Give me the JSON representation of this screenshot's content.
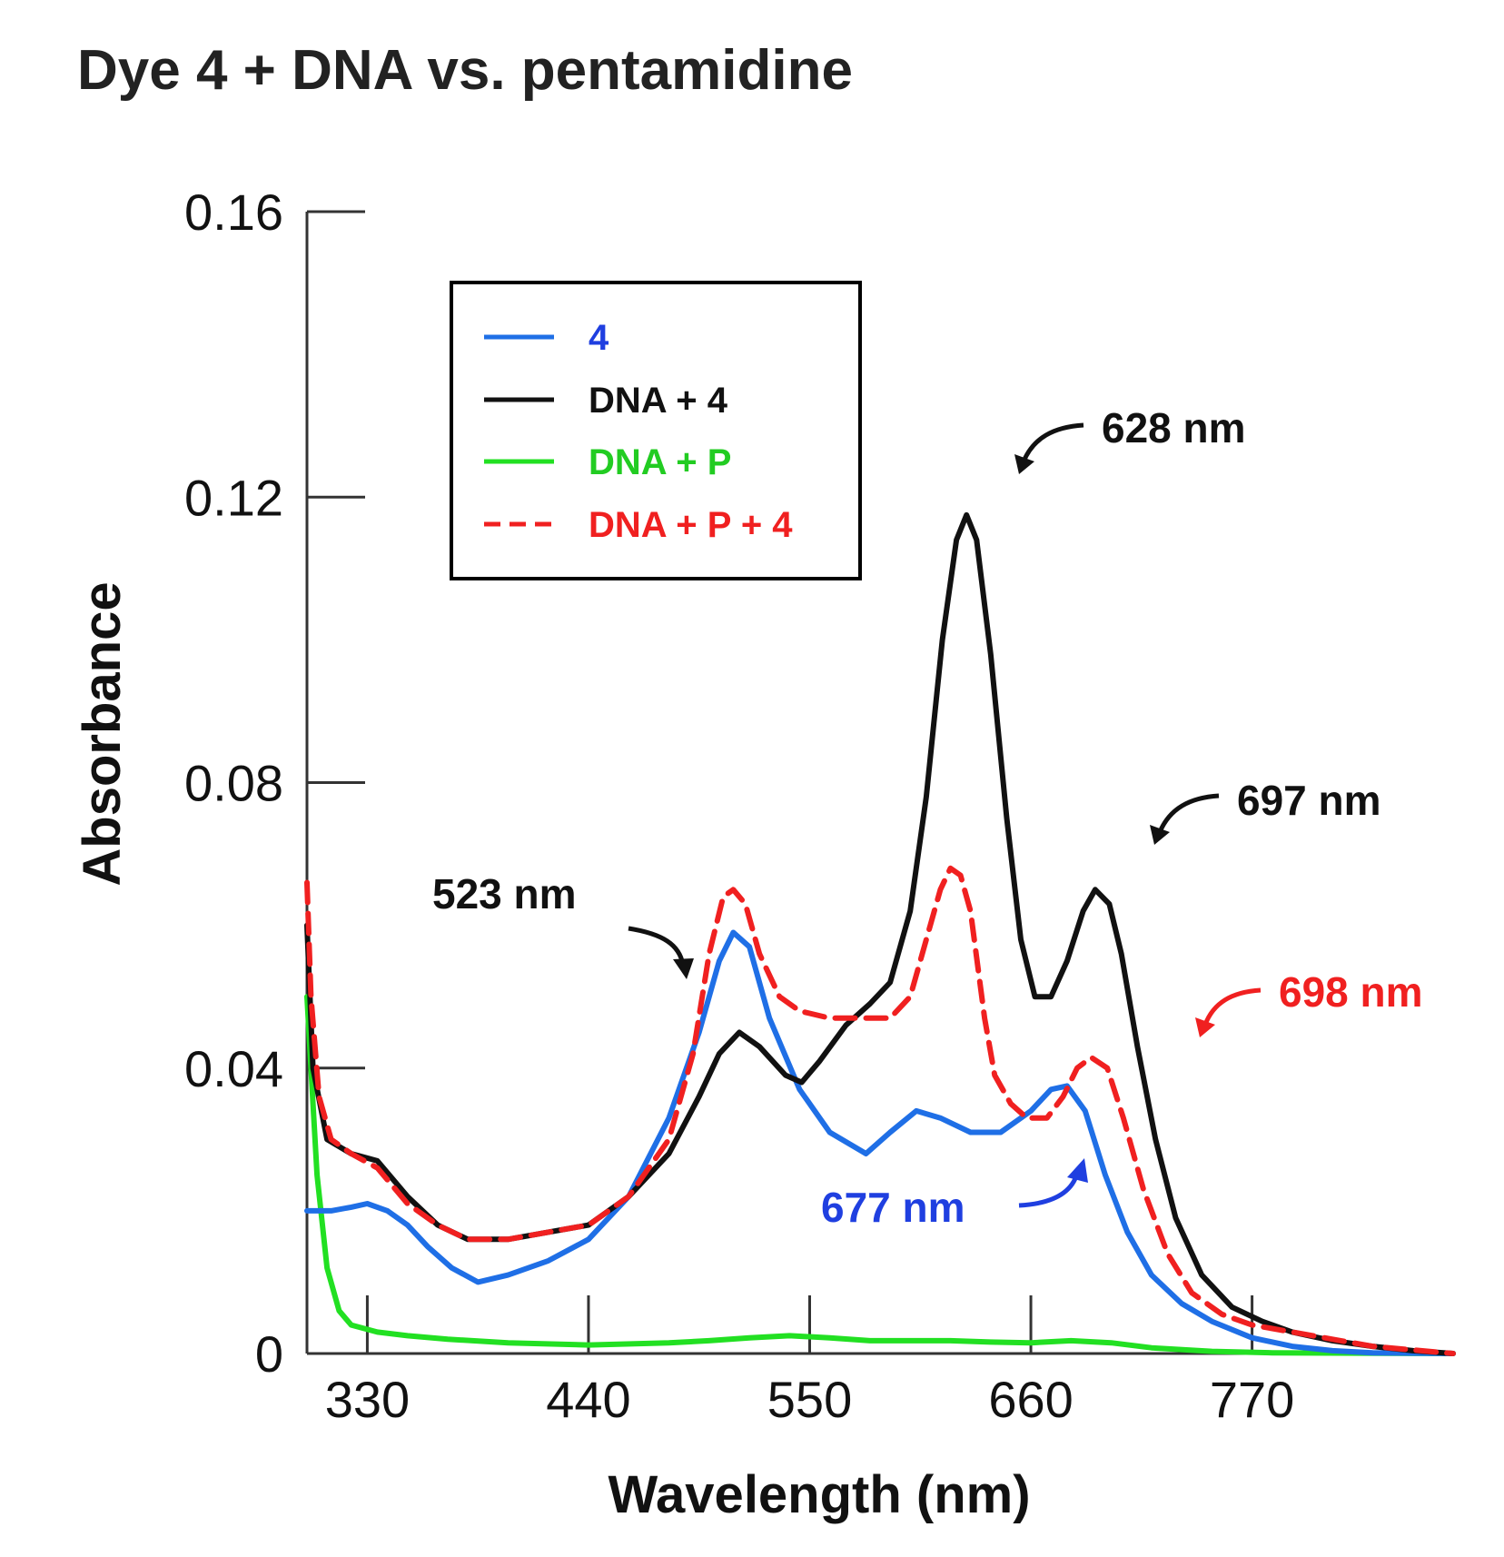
{
  "chart_data": {
    "type": "line",
    "title": "Dye 4 + DNA vs. pentamidine",
    "xlabel": "Wavelength (nm)",
    "ylabel": "Absorbance",
    "xlim": [
      300,
      870
    ],
    "ylim": [
      0,
      0.16
    ],
    "xticks": [
      330,
      440,
      550,
      660,
      770
    ],
    "xtick_labels": [
      "330",
      "440",
      "550",
      "660",
      "770"
    ],
    "yticks": [
      0,
      0.04,
      0.08,
      0.12,
      0.16
    ],
    "ytick_labels": [
      "0",
      "0.04",
      "0.08",
      "0.12",
      "0.16"
    ],
    "grid": false,
    "legend_position": "upper-left inside plot",
    "series": [
      {
        "name": "4",
        "color": "#1f6fe6",
        "dash": "solid",
        "points": [
          [
            300,
            0.02
          ],
          [
            312,
            0.02
          ],
          [
            322,
            0.0205
          ],
          [
            330,
            0.021
          ],
          [
            340,
            0.02
          ],
          [
            350,
            0.018
          ],
          [
            360,
            0.015
          ],
          [
            372,
            0.012
          ],
          [
            385,
            0.01
          ],
          [
            400,
            0.011
          ],
          [
            420,
            0.013
          ],
          [
            440,
            0.016
          ],
          [
            460,
            0.022
          ],
          [
            480,
            0.033
          ],
          [
            495,
            0.045
          ],
          [
            505,
            0.055
          ],
          [
            512,
            0.059
          ],
          [
            520,
            0.057
          ],
          [
            530,
            0.047
          ],
          [
            545,
            0.037
          ],
          [
            560,
            0.031
          ],
          [
            578,
            0.028
          ],
          [
            590,
            0.031
          ],
          [
            603,
            0.034
          ],
          [
            615,
            0.033
          ],
          [
            630,
            0.031
          ],
          [
            645,
            0.031
          ],
          [
            660,
            0.034
          ],
          [
            670,
            0.037
          ],
          [
            678,
            0.0375
          ],
          [
            687,
            0.034
          ],
          [
            697,
            0.025
          ],
          [
            708,
            0.017
          ],
          [
            720,
            0.011
          ],
          [
            735,
            0.007
          ],
          [
            750,
            0.0045
          ],
          [
            770,
            0.0022
          ],
          [
            790,
            0.001
          ],
          [
            810,
            0.0004
          ],
          [
            830,
            0.0001
          ],
          [
            870,
            0.0
          ]
        ]
      },
      {
        "name": "DNA + 4",
        "color": "#111111",
        "dash": "solid",
        "points": [
          [
            300,
            0.06
          ],
          [
            303,
            0.04
          ],
          [
            310,
            0.03
          ],
          [
            322,
            0.028
          ],
          [
            335,
            0.027
          ],
          [
            350,
            0.022
          ],
          [
            365,
            0.018
          ],
          [
            380,
            0.016
          ],
          [
            400,
            0.016
          ],
          [
            420,
            0.017
          ],
          [
            440,
            0.018
          ],
          [
            460,
            0.022
          ],
          [
            480,
            0.028
          ],
          [
            495,
            0.036
          ],
          [
            505,
            0.042
          ],
          [
            515,
            0.045
          ],
          [
            525,
            0.043
          ],
          [
            538,
            0.039
          ],
          [
            546,
            0.038
          ],
          [
            555,
            0.041
          ],
          [
            568,
            0.046
          ],
          [
            580,
            0.049
          ],
          [
            590,
            0.052
          ],
          [
            600,
            0.062
          ],
          [
            608,
            0.078
          ],
          [
            616,
            0.1
          ],
          [
            623,
            0.114
          ],
          [
            628,
            0.1175
          ],
          [
            633,
            0.114
          ],
          [
            640,
            0.098
          ],
          [
            648,
            0.075
          ],
          [
            655,
            0.058
          ],
          [
            662,
            0.05
          ],
          [
            670,
            0.05
          ],
          [
            678,
            0.055
          ],
          [
            686,
            0.062
          ],
          [
            692,
            0.065
          ],
          [
            699,
            0.063
          ],
          [
            705,
            0.056
          ],
          [
            713,
            0.043
          ],
          [
            722,
            0.03
          ],
          [
            732,
            0.019
          ],
          [
            745,
            0.011
          ],
          [
            760,
            0.0065
          ],
          [
            775,
            0.0045
          ],
          [
            790,
            0.003
          ],
          [
            810,
            0.0018
          ],
          [
            830,
            0.001
          ],
          [
            850,
            0.0004
          ],
          [
            870,
            0.0
          ]
        ]
      },
      {
        "name": "DNA + P",
        "color": "#22e022",
        "dash": "solid",
        "points": [
          [
            300,
            0.05
          ],
          [
            302,
            0.04
          ],
          [
            305,
            0.025
          ],
          [
            310,
            0.012
          ],
          [
            316,
            0.006
          ],
          [
            322,
            0.004
          ],
          [
            335,
            0.003
          ],
          [
            350,
            0.0025
          ],
          [
            370,
            0.002
          ],
          [
            400,
            0.0015
          ],
          [
            440,
            0.0012
          ],
          [
            480,
            0.0015
          ],
          [
            500,
            0.0018
          ],
          [
            520,
            0.0022
          ],
          [
            540,
            0.0025
          ],
          [
            560,
            0.0022
          ],
          [
            580,
            0.0018
          ],
          [
            600,
            0.0018
          ],
          [
            620,
            0.0018
          ],
          [
            640,
            0.0016
          ],
          [
            660,
            0.0015
          ],
          [
            680,
            0.0018
          ],
          [
            700,
            0.0015
          ],
          [
            720,
            0.0008
          ],
          [
            750,
            0.0003
          ],
          [
            780,
            0.0001
          ],
          [
            870,
            0.0
          ]
        ]
      },
      {
        "name": "DNA + P + 4",
        "color": "#f02020",
        "dash": "dashed",
        "points": [
          [
            300,
            0.066
          ],
          [
            302,
            0.05
          ],
          [
            306,
            0.036
          ],
          [
            312,
            0.03
          ],
          [
            322,
            0.028
          ],
          [
            335,
            0.026
          ],
          [
            350,
            0.021
          ],
          [
            365,
            0.018
          ],
          [
            380,
            0.016
          ],
          [
            400,
            0.016
          ],
          [
            420,
            0.017
          ],
          [
            440,
            0.018
          ],
          [
            460,
            0.022
          ],
          [
            480,
            0.03
          ],
          [
            492,
            0.042
          ],
          [
            500,
            0.056
          ],
          [
            507,
            0.064
          ],
          [
            512,
            0.065
          ],
          [
            518,
            0.063
          ],
          [
            525,
            0.056
          ],
          [
            535,
            0.05
          ],
          [
            545,
            0.048
          ],
          [
            560,
            0.047
          ],
          [
            575,
            0.047
          ],
          [
            590,
            0.047
          ],
          [
            600,
            0.05
          ],
          [
            608,
            0.058
          ],
          [
            615,
            0.065
          ],
          [
            620,
            0.068
          ],
          [
            625,
            0.067
          ],
          [
            630,
            0.062
          ],
          [
            637,
            0.047
          ],
          [
            642,
            0.039
          ],
          [
            650,
            0.035
          ],
          [
            658,
            0.033
          ],
          [
            668,
            0.033
          ],
          [
            676,
            0.036
          ],
          [
            683,
            0.04
          ],
          [
            690,
            0.0415
          ],
          [
            698,
            0.04
          ],
          [
            706,
            0.033
          ],
          [
            716,
            0.023
          ],
          [
            728,
            0.014
          ],
          [
            740,
            0.0085
          ],
          [
            755,
            0.0055
          ],
          [
            770,
            0.004
          ],
          [
            790,
            0.003
          ],
          [
            810,
            0.002
          ],
          [
            830,
            0.001
          ],
          [
            850,
            0.0005
          ],
          [
            870,
            0.0
          ]
        ]
      }
    ],
    "annotations": [
      {
        "text": "628 nm",
        "color": "#111111"
      },
      {
        "text": "697 nm",
        "color": "#111111"
      },
      {
        "text": "523 nm",
        "color": "#111111"
      },
      {
        "text": "698 nm",
        "color": "#f02020"
      },
      {
        "text": "677 nm",
        "color": "#1f3fe0"
      }
    ]
  }
}
